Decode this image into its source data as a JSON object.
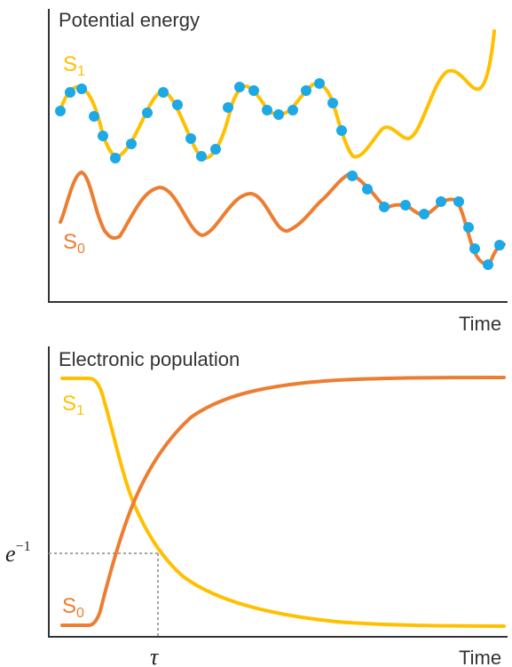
{
  "top_panel": {
    "title": "Potential energy",
    "x_label": "Time",
    "curve_upper": {
      "label_main": "S",
      "label_sub": "1"
    },
    "curve_lower": {
      "label_main": "S",
      "label_sub": "0"
    }
  },
  "bottom_panel": {
    "title": "Electronic population",
    "x_label": "Time",
    "curve_decay": {
      "label_main": "S",
      "label_sub": "1"
    },
    "curve_rise": {
      "label_main": "S",
      "label_sub": "0"
    },
    "y_marker": {
      "base": "e",
      "exponent": "−1"
    },
    "x_marker": "τ"
  },
  "colors": {
    "s1": "#FFC000",
    "s0": "#ED7D31",
    "trajectory_points": "#1CA9E6",
    "axes": "#333333",
    "guide_lines": "#A6A6A6"
  },
  "icons": [
    "trajectory-dot"
  ]
}
